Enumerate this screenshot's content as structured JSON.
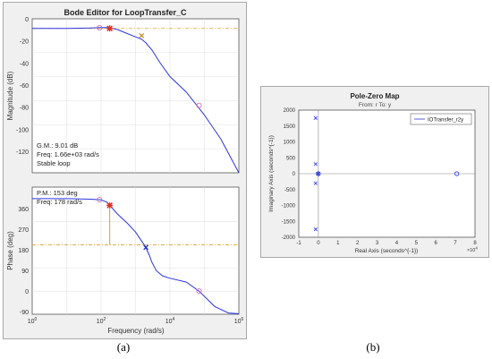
{
  "colors": {
    "curve": "#2a35e0",
    "ref_line": "#e0a020",
    "pole_marker": "#d23a3a",
    "zero_marker": "#d46bb0",
    "crossover_marker": "#e03020",
    "pz_marker": "#2a35e0",
    "axis_bg": "#ffffff",
    "window_bg": "#f0f0f0"
  },
  "captions": {
    "a": "(a)",
    "b": "(b)"
  },
  "bode_window": {
    "title": "Bode Editor for LoopTransfer_C",
    "magnitude": {
      "ylabel": "Magnitude (dB)",
      "yticks": [
        "0",
        "-20",
        "-40",
        "-60",
        "-80",
        "-100",
        "-120"
      ],
      "gm_text": "G.M.: 9.01 dB",
      "gm_freq_text": "Freq: 1.66e+03 rad/s",
      "stability_text": "Stable loop"
    },
    "phase": {
      "ylabel": "Phase (deg)",
      "yticks": [
        "360",
        "270",
        "180",
        "90",
        "0",
        "-90"
      ],
      "pm_text": "P.M.: 153 deg",
      "pm_freq_text": "Freq: 178 rad/s"
    },
    "xlabel": "Frequency (rad/s)",
    "xtick_base": "10",
    "xtick_exps": [
      "0",
      "2",
      "4",
      "6"
    ]
  },
  "pz_window": {
    "title": "Pole-Zero Map",
    "subtitle": "From: r  To: y",
    "ylabel": "Imaginary Axis (seconds^{-1})",
    "xlabel": "Real Axis (seconds^{-1})",
    "xticks": [
      "-1",
      "0",
      "1",
      "2",
      "3",
      "4",
      "5",
      "6",
      "7",
      "8"
    ],
    "yticks": [
      "2000",
      "1500",
      "1000",
      "500",
      "0",
      "-500",
      "-1000",
      "-1500",
      "-2000"
    ],
    "xscale": "×10",
    "xscale_exp": "4",
    "legend": "IOTransfer_r2y"
  },
  "chart_data": [
    {
      "type": "line",
      "title": "Bode Editor for LoopTransfer_C",
      "subplot": "magnitude",
      "xlabel": "Frequency (rad/s)",
      "ylabel": "Magnitude (dB)",
      "xscale": "log",
      "xlim": [
        1,
        1000000
      ],
      "ylim": [
        -120,
        8
      ],
      "grid": true,
      "reference_line_y": 0,
      "series": [
        {
          "x": [
            1,
            10,
            50,
            100,
            178,
            300,
            500,
            1000,
            1500,
            2000,
            3000,
            5000,
            10000,
            30000,
            100000,
            300000,
            1000000
          ],
          "y": [
            0,
            0,
            0.3,
            0.8,
            0.6,
            -1,
            -3.5,
            -7,
            -9,
            -12,
            -18,
            -28,
            -40,
            -53,
            -72,
            -92,
            -120
          ]
        }
      ],
      "annotations": [
        {
          "type": "zero",
          "x": 90,
          "y": 0.5
        },
        {
          "type": "zero",
          "x": 70000,
          "y": -64
        },
        {
          "type": "pole",
          "x": 1500,
          "y": -6
        },
        {
          "type": "crossover",
          "x": 178,
          "y": 0
        }
      ],
      "text": [
        "G.M.: 9.01 dB",
        "Freq: 1.66e+03 rad/s",
        "Stable loop"
      ]
    },
    {
      "type": "line",
      "title": "",
      "subplot": "phase",
      "xlabel": "Frequency (rad/s)",
      "ylabel": "Phase (deg)",
      "xscale": "log",
      "xlim": [
        1,
        1000000
      ],
      "ylim": [
        -90,
        405
      ],
      "yticks": [
        -90,
        0,
        90,
        180,
        270,
        360
      ],
      "grid": true,
      "reference_line_y": 180,
      "series": [
        {
          "x": [
            1,
            10,
            50,
            100,
            150,
            178,
            300,
            600,
            1000,
            1500,
            2000,
            2500,
            3000,
            4000,
            6000,
            10000,
            30000,
            70000,
            200000,
            500000,
            1000000
          ],
          "y": [
            360,
            360,
            358,
            355,
            346,
            334,
            300,
            262,
            230,
            195,
            170,
            140,
            112,
            80,
            60,
            50,
            35,
            0,
            -60,
            -85,
            -88
          ]
        }
      ],
      "annotations": [
        {
          "type": "zero",
          "x": 90,
          "y": 356
        },
        {
          "type": "zero",
          "x": 70000,
          "y": 0
        },
        {
          "type": "pole",
          "x": 2000,
          "y": 170
        },
        {
          "type": "crossover",
          "x": 178,
          "y": 334
        }
      ],
      "phase_margin_line": {
        "x": 178,
        "y_from": 180,
        "y_to": 334
      },
      "text": [
        "P.M.: 153 deg",
        "Freq: 178 rad/s"
      ]
    },
    {
      "type": "scatter",
      "title": "Pole-Zero Map",
      "subtitle": "From: r  To: y",
      "xlabel": "Real Axis (seconds^{-1})",
      "ylabel": "Imaginary Axis (seconds^{-1})",
      "xlim": [
        -10000,
        80000
      ],
      "ylim": [
        -2000,
        2000
      ],
      "x_multiplier": "x10^4",
      "grid": false,
      "legend": {
        "entries": [
          "IOTransfer_r2y"
        ],
        "placement": "top-right"
      },
      "series": [
        {
          "name": "IOTransfer_r2y",
          "poles": [
            {
              "x": -1400,
              "y": 1750
            },
            {
              "x": -1400,
              "y": -1750
            },
            {
              "x": -1400,
              "y": 300
            },
            {
              "x": -1400,
              "y": -300
            },
            {
              "x": -200,
              "y": 0
            },
            {
              "x": 0,
              "y": 0
            }
          ],
          "zeros": [
            {
              "x": 0,
              "y": 0
            },
            {
              "x": 70700,
              "y": 0
            }
          ]
        }
      ]
    }
  ]
}
